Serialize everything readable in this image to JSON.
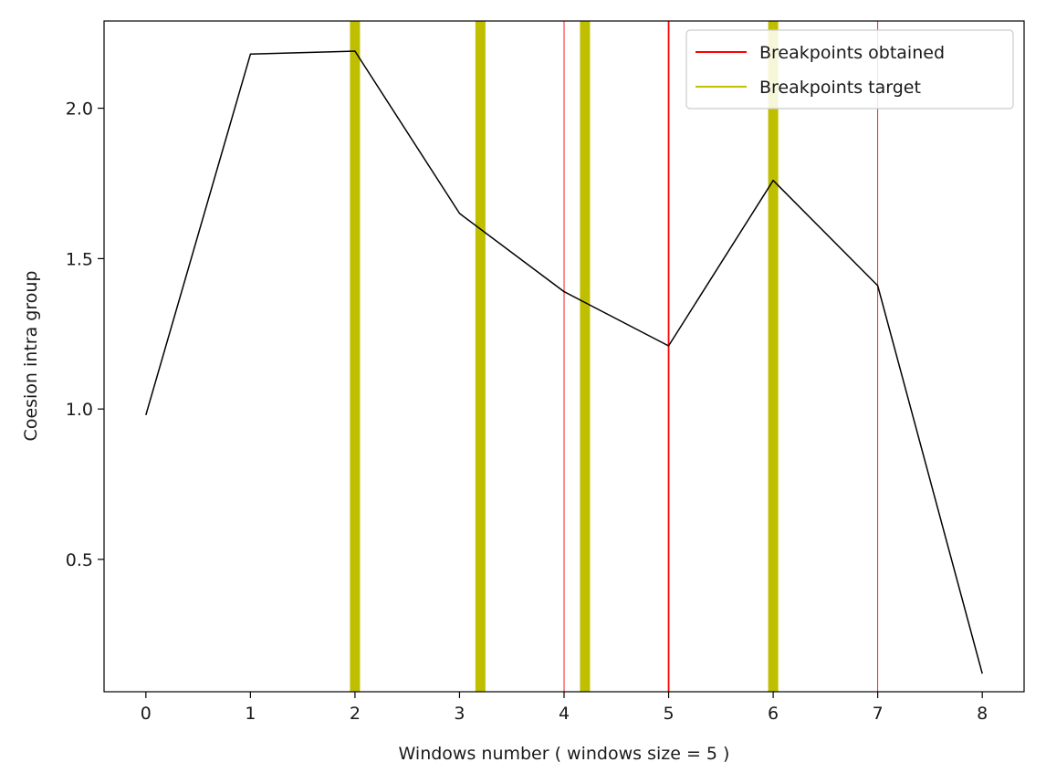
{
  "chart_data": {
    "type": "line",
    "xlabel": "Windows number ( windows size = 5 )",
    "ylabel": "Coesion intra group",
    "xlim": [
      -0.4,
      8.4
    ],
    "ylim": [
      0.06,
      2.29
    ],
    "xticks": [
      0,
      1,
      2,
      3,
      4,
      5,
      6,
      7,
      8
    ],
    "xtick_labels": [
      "0",
      "1",
      "2",
      "3",
      "4",
      "5",
      "6",
      "7",
      "8"
    ],
    "yticks": [
      0.5,
      1.0,
      1.5,
      2.0
    ],
    "ytick_labels": [
      "0.5",
      "1.0",
      "1.5",
      "2.0"
    ],
    "grid": false,
    "series": [
      {
        "x": [
          0,
          1,
          2,
          3,
          4,
          5,
          6,
          7,
          8
        ],
        "values": [
          0.98,
          2.18,
          2.19,
          1.65,
          1.39,
          1.21,
          1.76,
          1.41,
          0.12
        ],
        "color": "#000000"
      }
    ],
    "vlines": {
      "obtained": {
        "color": "#ff0000",
        "x": [
          4,
          5,
          7
        ],
        "widths": [
          "thin",
          "normal",
          "thin"
        ]
      },
      "target": {
        "color": "#bfbf00",
        "x": [
          2.0,
          3.2,
          4.2,
          6.0
        ]
      }
    },
    "legend": {
      "position": "top-right",
      "entries": [
        {
          "label": "Breakpoints obtained",
          "color": "#ff0000"
        },
        {
          "label": "Breakpoints target",
          "color": "#bfbf00"
        }
      ]
    }
  }
}
